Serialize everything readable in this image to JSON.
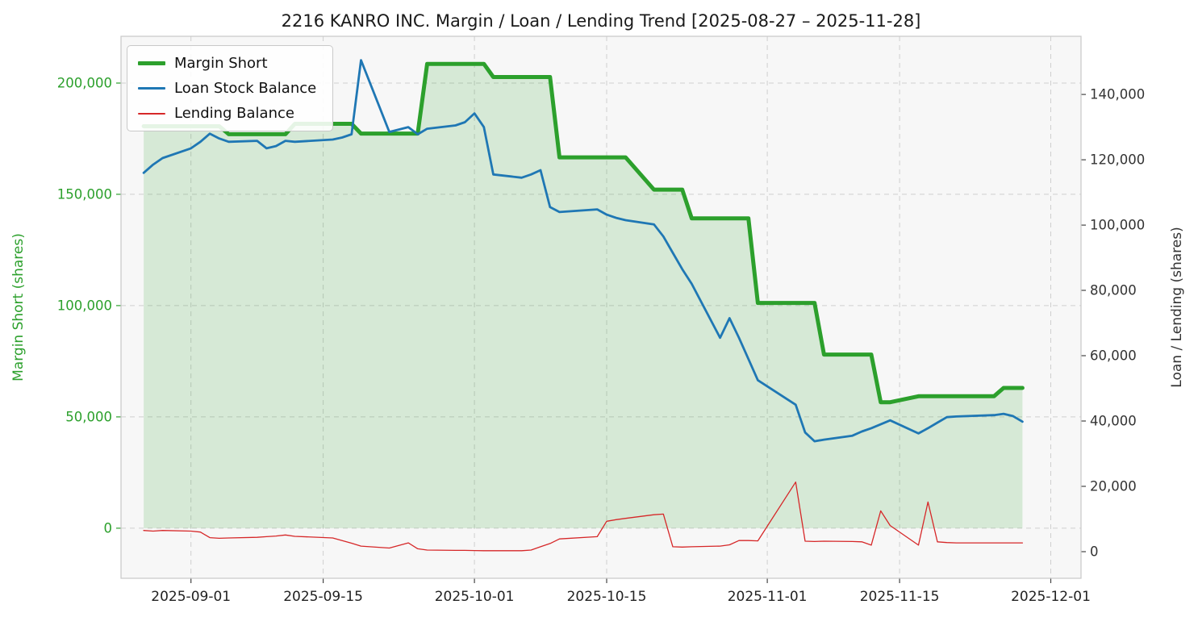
{
  "chart_data": {
    "type": "line",
    "title": "2216 KANRO INC. Margin / Loan / Lending Trend [2025-08-27 – 2025-11-28]",
    "dates": [
      "2025-08-27",
      "2025-08-28",
      "2025-08-29",
      "2025-09-01",
      "2025-09-02",
      "2025-09-03",
      "2025-09-04",
      "2025-09-05",
      "2025-09-08",
      "2025-09-09",
      "2025-09-10",
      "2025-09-11",
      "2025-09-12",
      "2025-09-16",
      "2025-09-17",
      "2025-09-18",
      "2025-09-19",
      "2025-09-22",
      "2025-09-24",
      "2025-09-25",
      "2025-09-26",
      "2025-09-29",
      "2025-09-30",
      "2025-10-01",
      "2025-10-02",
      "2025-10-03",
      "2025-10-06",
      "2025-10-07",
      "2025-10-08",
      "2025-10-09",
      "2025-10-10",
      "2025-10-14",
      "2025-10-15",
      "2025-10-16",
      "2025-10-17",
      "2025-10-20",
      "2025-10-21",
      "2025-10-22",
      "2025-10-23",
      "2025-10-24",
      "2025-10-27",
      "2025-10-28",
      "2025-10-29",
      "2025-10-30",
      "2025-10-31",
      "2025-11-04",
      "2025-11-05",
      "2025-11-06",
      "2025-11-07",
      "2025-11-10",
      "2025-11-11",
      "2025-11-12",
      "2025-11-13",
      "2025-11-14",
      "2025-11-17",
      "2025-11-18",
      "2025-11-19",
      "2025-11-20",
      "2025-11-21",
      "2025-11-25",
      "2025-11-26",
      "2025-11-27",
      "2025-11-28"
    ],
    "series": [
      {
        "name": "Margin Short",
        "axis": "left",
        "color": "#2ca02c",
        "line_width": 5,
        "fill": true,
        "fill_color": "rgba(44,160,44,0.16)",
        "values": [
          180600,
          180600,
          180600,
          180600,
          180600,
          180600,
          180600,
          177000,
          177000,
          177000,
          177000,
          177000,
          181700,
          181700,
          181700,
          181700,
          177300,
          177300,
          177300,
          177300,
          208600,
          208600,
          208600,
          208600,
          208600,
          202700,
          202700,
          202700,
          202700,
          202700,
          166600,
          166600,
          166600,
          166600,
          166600,
          152100,
          152100,
          152100,
          152100,
          139200,
          139200,
          139200,
          139200,
          139200,
          101200,
          101200,
          101200,
          101200,
          78000,
          78000,
          78000,
          78000,
          56600,
          56600,
          59300,
          59300,
          59300,
          59300,
          59300,
          59300,
          63000,
          63000,
          63000
        ]
      },
      {
        "name": "Loan Stock Balance",
        "axis": "right",
        "color": "#1f77b4",
        "line_width": 2.8,
        "fill": false,
        "fill_color": "none",
        "values": [
          116000,
          118500,
          120500,
          123500,
          125500,
          128000,
          126500,
          125500,
          125800,
          123500,
          124200,
          125800,
          125500,
          126200,
          126800,
          127800,
          150500,
          128500,
          130000,
          127800,
          129500,
          130500,
          131500,
          134200,
          130000,
          115500,
          114500,
          115500,
          116800,
          105500,
          104000,
          104800,
          103200,
          102200,
          101500,
          100200,
          96500,
          91500,
          86500,
          82000,
          65500,
          71500,
          65500,
          59000,
          52500,
          45000,
          36500,
          33800,
          34300,
          35500,
          36800,
          37800,
          39000,
          40200,
          36200,
          37800,
          39500,
          41200,
          41400,
          41800,
          42200,
          41500,
          39800
        ]
      },
      {
        "name": "Lending Balance",
        "axis": "right",
        "color": "#d62728",
        "line_width": 1.3,
        "fill": false,
        "fill_color": "none",
        "values": [
          6500,
          6300,
          6500,
          6300,
          6000,
          4300,
          4100,
          4200,
          4400,
          4600,
          4800,
          5100,
          4700,
          4200,
          3400,
          2600,
          1700,
          1100,
          2700,
          900,
          500,
          400,
          400,
          350,
          300,
          300,
          300,
          500,
          1500,
          2500,
          3900,
          4600,
          9300,
          9800,
          10200,
          11300,
          11500,
          1500,
          1400,
          1500,
          1700,
          2100,
          3400,
          3400,
          3300,
          21300,
          3200,
          3100,
          3200,
          3100,
          3000,
          2000,
          12500,
          8000,
          2000,
          15200,
          3000,
          2800,
          2700,
          2700,
          2700,
          2700,
          2700
        ]
      }
    ],
    "left_axis": {
      "label": "Margin Short (shares)",
      "color": "#2ca02c",
      "ticks": [
        0,
        50000,
        100000,
        150000,
        200000
      ],
      "range": [
        -22500,
        221000
      ]
    },
    "right_axis": {
      "label": "Loan / Lending (shares)",
      "color": "#333333",
      "ticks": [
        0,
        20000,
        40000,
        60000,
        80000,
        100000,
        120000,
        140000
      ],
      "range": [
        -8150,
        157800
      ]
    },
    "x_axis": {
      "start_date": "2025-08-27",
      "domain_days": [
        -2.4,
        99.2
      ],
      "ticks": [
        "2025-09-01",
        "2025-09-15",
        "2025-10-01",
        "2025-10-15",
        "2025-11-01",
        "2025-11-15",
        "2025-12-01"
      ]
    },
    "legend": {
      "position": "upper-left"
    },
    "grid": {
      "dashed": true
    }
  }
}
